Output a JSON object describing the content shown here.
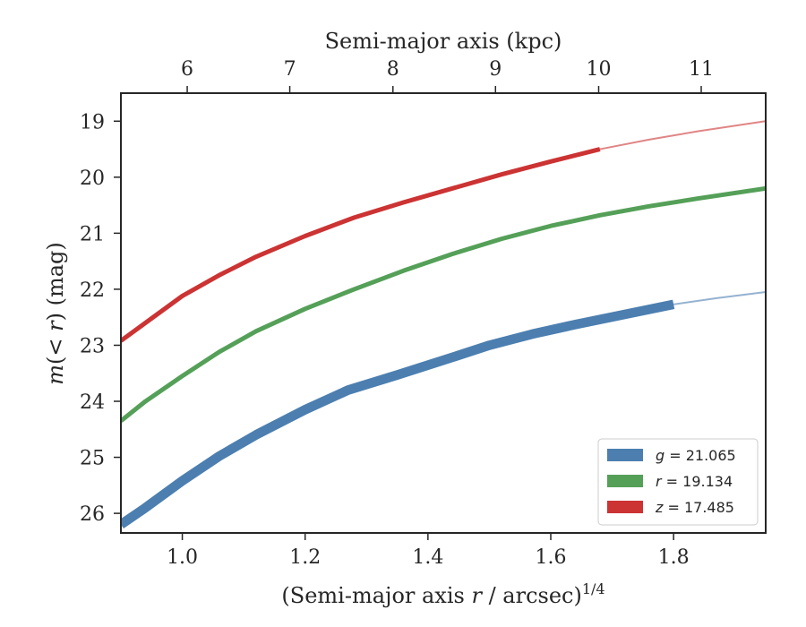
{
  "chart_data": {
    "type": "line",
    "xlabel": "(Semi-major axis r / arcsec)^(1/4)",
    "ylabel": "m(< r) (mag)",
    "top_xlabel": "Semi-major axis (kpc)",
    "xlim": [
      0.9,
      1.95
    ],
    "ylim": [
      26.35,
      18.5
    ],
    "y_inverted": true,
    "x_ticks": [
      1.0,
      1.2,
      1.4,
      1.6,
      1.8
    ],
    "x_tick_labels": [
      "1.0",
      "1.2",
      "1.4",
      "1.6",
      "1.8"
    ],
    "y_ticks": [
      19,
      20,
      21,
      22,
      23,
      24,
      25,
      26
    ],
    "y_tick_labels": [
      "19",
      "20",
      "21",
      "22",
      "23",
      "24",
      "25",
      "26"
    ],
    "top_x_ticks_kpc": [
      6,
      7,
      8,
      9,
      10,
      11
    ],
    "top_x_tick_labels": [
      "6",
      "7",
      "8",
      "9",
      "10",
      "11"
    ],
    "top_x_positions": [
      1.008,
      1.175,
      1.343,
      1.51,
      1.678,
      1.845
    ],
    "grid": false,
    "legend_position": "lower-right",
    "series": [
      {
        "name": "g = 21.065",
        "legend_var": "g",
        "legend_value": "21.065",
        "color": "#4c7fb0",
        "band_width_mag": 0.17,
        "x": [
          0.9,
          0.94,
          1.0,
          1.06,
          1.12,
          1.2,
          1.27,
          1.35,
          1.43,
          1.5,
          1.57,
          1.64,
          1.72,
          1.8
        ],
        "y": [
          26.2,
          25.9,
          25.42,
          24.98,
          24.6,
          24.15,
          23.8,
          23.53,
          23.25,
          23.0,
          22.8,
          22.63,
          22.45,
          22.27
        ],
        "extrapolated_x": [
          1.8,
          1.87,
          1.95
        ],
        "extrapolated_y": [
          22.27,
          22.16,
          22.05
        ]
      },
      {
        "name": "r = 19.134",
        "legend_var": "r",
        "legend_value": "19.134",
        "color": "#55a058",
        "band_width_mag": 0.08,
        "x": [
          0.9,
          0.94,
          1.0,
          1.06,
          1.12,
          1.2,
          1.28,
          1.36,
          1.44,
          1.52,
          1.6,
          1.68,
          1.76,
          1.84,
          1.95
        ],
        "y": [
          24.35,
          24.0,
          23.55,
          23.12,
          22.75,
          22.35,
          22.0,
          21.67,
          21.37,
          21.1,
          20.87,
          20.68,
          20.52,
          20.38,
          20.2
        ]
      },
      {
        "name": "z = 17.485",
        "legend_var": "z",
        "legend_value": "17.485",
        "color": "#cc3333",
        "band_width_mag": 0.08,
        "x": [
          0.9,
          0.94,
          1.0,
          1.06,
          1.12,
          1.2,
          1.28,
          1.36,
          1.44,
          1.52,
          1.6,
          1.68
        ],
        "y": [
          22.92,
          22.6,
          22.12,
          21.75,
          21.42,
          21.05,
          20.72,
          20.45,
          20.2,
          19.95,
          19.72,
          19.5
        ],
        "extrapolated_x": [
          1.68,
          1.76,
          1.84,
          1.95
        ],
        "extrapolated_y": [
          19.5,
          19.33,
          19.18,
          19.0
        ]
      }
    ]
  }
}
